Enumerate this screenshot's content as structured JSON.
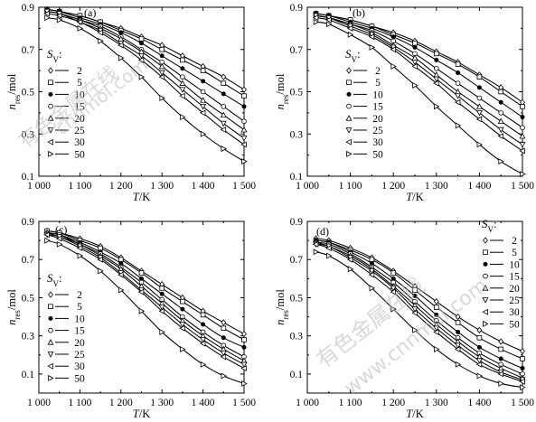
{
  "chart_data": [
    {
      "type": "line",
      "panel_label": "(a)",
      "xlabel": "T/K",
      "ylabel": "n_res/mol",
      "xlim": [
        1000,
        1500
      ],
      "ylim": [
        0.1,
        0.9
      ],
      "xticks": [
        1000,
        1100,
        1200,
        1300,
        1400,
        1500
      ],
      "xtick_labels": [
        "1 000",
        "1 100",
        "1 200",
        "1 300",
        "1 400",
        "1 500"
      ],
      "yticks": [
        0.1,
        0.3,
        0.5,
        0.7,
        0.9
      ],
      "legend_title": "S_V:",
      "legend_title_main": "S",
      "legend_title_sub": "V",
      "legend_title_suffix": ":",
      "legend_position": "left",
      "x": [
        1020,
        1050,
        1100,
        1150,
        1200,
        1250,
        1300,
        1350,
        1400,
        1450,
        1500
      ],
      "series": [
        {
          "name": "2",
          "marker": "diamond",
          "values": [
            0.89,
            0.88,
            0.86,
            0.83,
            0.8,
            0.76,
            0.72,
            0.67,
            0.62,
            0.57,
            0.51
          ]
        },
        {
          "name": "5",
          "marker": "square",
          "values": [
            0.89,
            0.88,
            0.86,
            0.83,
            0.79,
            0.75,
            0.7,
            0.65,
            0.6,
            0.54,
            0.48
          ]
        },
        {
          "name": "10",
          "marker": "star",
          "values": [
            0.89,
            0.88,
            0.85,
            0.82,
            0.78,
            0.73,
            0.67,
            0.61,
            0.55,
            0.49,
            0.43
          ]
        },
        {
          "name": "15",
          "marker": "circle",
          "values": [
            0.88,
            0.87,
            0.84,
            0.81,
            0.76,
            0.7,
            0.64,
            0.57,
            0.5,
            0.43,
            0.36
          ]
        },
        {
          "name": "20",
          "marker": "triangle-up",
          "values": [
            0.88,
            0.87,
            0.84,
            0.8,
            0.75,
            0.69,
            0.62,
            0.54,
            0.46,
            0.39,
            0.32
          ]
        },
        {
          "name": "25",
          "marker": "triangle-down",
          "values": [
            0.88,
            0.87,
            0.83,
            0.79,
            0.73,
            0.67,
            0.59,
            0.51,
            0.43,
            0.35,
            0.28
          ]
        },
        {
          "name": "30",
          "marker": "triangle-left",
          "values": [
            0.87,
            0.86,
            0.83,
            0.78,
            0.72,
            0.65,
            0.57,
            0.48,
            0.4,
            0.32,
            0.25
          ]
        },
        {
          "name": "50",
          "marker": "triangle-right",
          "values": [
            0.85,
            0.84,
            0.8,
            0.74,
            0.66,
            0.57,
            0.47,
            0.38,
            0.3,
            0.23,
            0.17
          ]
        }
      ]
    },
    {
      "type": "line",
      "panel_label": "(b)",
      "xlabel": "T/K",
      "ylabel": "n_res/mol",
      "xlim": [
        1000,
        1500
      ],
      "ylim": [
        0.1,
        0.9
      ],
      "xticks": [
        1000,
        1100,
        1200,
        1300,
        1400,
        1500
      ],
      "xtick_labels": [
        "1 000",
        "1 100",
        "1 200",
        "1 300",
        "1 400",
        "1 500"
      ],
      "yticks": [
        0.1,
        0.3,
        0.5,
        0.7,
        0.9
      ],
      "legend_title": "S_V:",
      "legend_title_main": "S",
      "legend_title_sub": "V",
      "legend_title_suffix": ":",
      "legend_position": "left",
      "x": [
        1020,
        1050,
        1100,
        1150,
        1200,
        1250,
        1300,
        1350,
        1400,
        1450,
        1500
      ],
      "series": [
        {
          "name": "2",
          "marker": "diamond",
          "values": [
            0.87,
            0.86,
            0.84,
            0.81,
            0.78,
            0.74,
            0.69,
            0.64,
            0.58,
            0.52,
            0.45
          ]
        },
        {
          "name": "5",
          "marker": "square",
          "values": [
            0.87,
            0.86,
            0.84,
            0.81,
            0.77,
            0.73,
            0.68,
            0.63,
            0.57,
            0.5,
            0.43
          ]
        },
        {
          "name": "10",
          "marker": "star",
          "values": [
            0.87,
            0.86,
            0.83,
            0.8,
            0.76,
            0.71,
            0.65,
            0.59,
            0.52,
            0.45,
            0.38
          ]
        },
        {
          "name": "15",
          "marker": "circle",
          "values": [
            0.86,
            0.85,
            0.82,
            0.79,
            0.74,
            0.68,
            0.61,
            0.54,
            0.47,
            0.4,
            0.33
          ]
        },
        {
          "name": "20",
          "marker": "triangle-up",
          "values": [
            0.86,
            0.85,
            0.82,
            0.78,
            0.72,
            0.66,
            0.58,
            0.5,
            0.43,
            0.36,
            0.29
          ]
        },
        {
          "name": "25",
          "marker": "triangle-down",
          "values": [
            0.86,
            0.85,
            0.81,
            0.77,
            0.71,
            0.64,
            0.56,
            0.48,
            0.4,
            0.32,
            0.25
          ]
        },
        {
          "name": "30",
          "marker": "triangle-left",
          "values": [
            0.85,
            0.84,
            0.8,
            0.76,
            0.7,
            0.62,
            0.54,
            0.45,
            0.37,
            0.29,
            0.22
          ]
        },
        {
          "name": "50",
          "marker": "triangle-right",
          "values": [
            0.83,
            0.82,
            0.77,
            0.71,
            0.62,
            0.53,
            0.43,
            0.34,
            0.25,
            0.17,
            0.11
          ]
        }
      ]
    },
    {
      "type": "line",
      "panel_label": "(c)",
      "xlabel": "T/K",
      "ylabel": "n_res/mol",
      "xlim": [
        1000,
        1500
      ],
      "ylim": [
        0.0,
        0.9
      ],
      "xticks": [
        1000,
        1100,
        1200,
        1300,
        1400,
        1500
      ],
      "xtick_labels": [
        "1 000",
        "1 100",
        "1 200",
        "1 300",
        "1 400",
        "1 500"
      ],
      "yticks": [
        0.1,
        0.3,
        0.5,
        0.7,
        0.9
      ],
      "legend_title": "S_V:",
      "legend_title_main": "S",
      "legend_title_sub": "V",
      "legend_title_suffix": ":",
      "legend_position": "left",
      "x": [
        1020,
        1050,
        1100,
        1150,
        1200,
        1250,
        1300,
        1350,
        1400,
        1450,
        1500
      ],
      "series": [
        {
          "name": "2",
          "marker": "diamond",
          "values": [
            0.85,
            0.84,
            0.81,
            0.77,
            0.71,
            0.64,
            0.57,
            0.5,
            0.43,
            0.37,
            0.31
          ]
        },
        {
          "name": "5",
          "marker": "square",
          "values": [
            0.85,
            0.84,
            0.8,
            0.76,
            0.7,
            0.63,
            0.55,
            0.48,
            0.41,
            0.34,
            0.28
          ]
        },
        {
          "name": "10",
          "marker": "star",
          "values": [
            0.84,
            0.83,
            0.79,
            0.74,
            0.68,
            0.6,
            0.52,
            0.44,
            0.36,
            0.29,
            0.24
          ]
        },
        {
          "name": "15",
          "marker": "circle",
          "values": [
            0.84,
            0.83,
            0.78,
            0.73,
            0.66,
            0.58,
            0.49,
            0.4,
            0.32,
            0.25,
            0.19
          ]
        },
        {
          "name": "20",
          "marker": "triangle-up",
          "values": [
            0.84,
            0.82,
            0.78,
            0.72,
            0.65,
            0.56,
            0.47,
            0.38,
            0.3,
            0.23,
            0.17
          ]
        },
        {
          "name": "25",
          "marker": "triangle-down",
          "values": [
            0.83,
            0.82,
            0.77,
            0.71,
            0.63,
            0.54,
            0.45,
            0.36,
            0.28,
            0.21,
            0.15
          ]
        },
        {
          "name": "30",
          "marker": "triangle-left",
          "values": [
            0.83,
            0.81,
            0.76,
            0.7,
            0.62,
            0.53,
            0.43,
            0.34,
            0.26,
            0.19,
            0.13
          ]
        },
        {
          "name": "50",
          "marker": "triangle-right",
          "values": [
            0.8,
            0.78,
            0.72,
            0.64,
            0.54,
            0.43,
            0.32,
            0.23,
            0.15,
            0.09,
            0.05
          ]
        }
      ]
    },
    {
      "type": "line",
      "panel_label": "(d)",
      "xlabel": "T/K",
      "ylabel": "n_res/mol",
      "xlim": [
        1000,
        1500
      ],
      "ylim": [
        0.0,
        0.9
      ],
      "xticks": [
        1000,
        1100,
        1200,
        1300,
        1400,
        1500
      ],
      "xtick_labels": [
        "1 000",
        "1 100",
        "1 200",
        "1 300",
        "1 400",
        "1 500"
      ],
      "yticks": [
        0.1,
        0.3,
        0.5,
        0.7,
        0.9
      ],
      "legend_title": "S_V:",
      "legend_title_main": "S",
      "legend_title_sub": "V",
      "legend_title_suffix": ":",
      "legend_position": "top-right",
      "x": [
        1020,
        1050,
        1100,
        1150,
        1200,
        1250,
        1300,
        1350,
        1400,
        1450,
        1500
      ],
      "series": [
        {
          "name": "2",
          "marker": "diamond",
          "values": [
            0.81,
            0.8,
            0.76,
            0.71,
            0.64,
            0.56,
            0.48,
            0.4,
            0.33,
            0.27,
            0.22
          ]
        },
        {
          "name": "5",
          "marker": "square",
          "values": [
            0.8,
            0.79,
            0.75,
            0.7,
            0.63,
            0.54,
            0.45,
            0.37,
            0.29,
            0.23,
            0.18
          ]
        },
        {
          "name": "10",
          "marker": "star",
          "values": [
            0.8,
            0.79,
            0.74,
            0.68,
            0.6,
            0.51,
            0.41,
            0.32,
            0.24,
            0.18,
            0.13
          ]
        },
        {
          "name": "15",
          "marker": "circle",
          "values": [
            0.79,
            0.78,
            0.73,
            0.66,
            0.58,
            0.48,
            0.38,
            0.29,
            0.21,
            0.15,
            0.1
          ]
        },
        {
          "name": "20",
          "marker": "triangle-up",
          "values": [
            0.79,
            0.77,
            0.72,
            0.65,
            0.56,
            0.46,
            0.36,
            0.27,
            0.19,
            0.13,
            0.08
          ]
        },
        {
          "name": "25",
          "marker": "triangle-down",
          "values": [
            0.78,
            0.77,
            0.71,
            0.64,
            0.55,
            0.44,
            0.34,
            0.25,
            0.17,
            0.11,
            0.07
          ]
        },
        {
          "name": "30",
          "marker": "triangle-left",
          "values": [
            0.78,
            0.76,
            0.7,
            0.62,
            0.53,
            0.42,
            0.32,
            0.23,
            0.15,
            0.1,
            0.06
          ]
        },
        {
          "name": "50",
          "marker": "triangle-right",
          "values": [
            0.74,
            0.72,
            0.65,
            0.55,
            0.44,
            0.33,
            0.23,
            0.15,
            0.09,
            0.05,
            0.03
          ]
        }
      ]
    }
  ],
  "watermark": {
    "top_chinese": "有色金属在线",
    "top_url": "cnnmol.com",
    "bottom_chinese": "有色金属在线",
    "bottom_url": "www.cnnmol.com"
  }
}
